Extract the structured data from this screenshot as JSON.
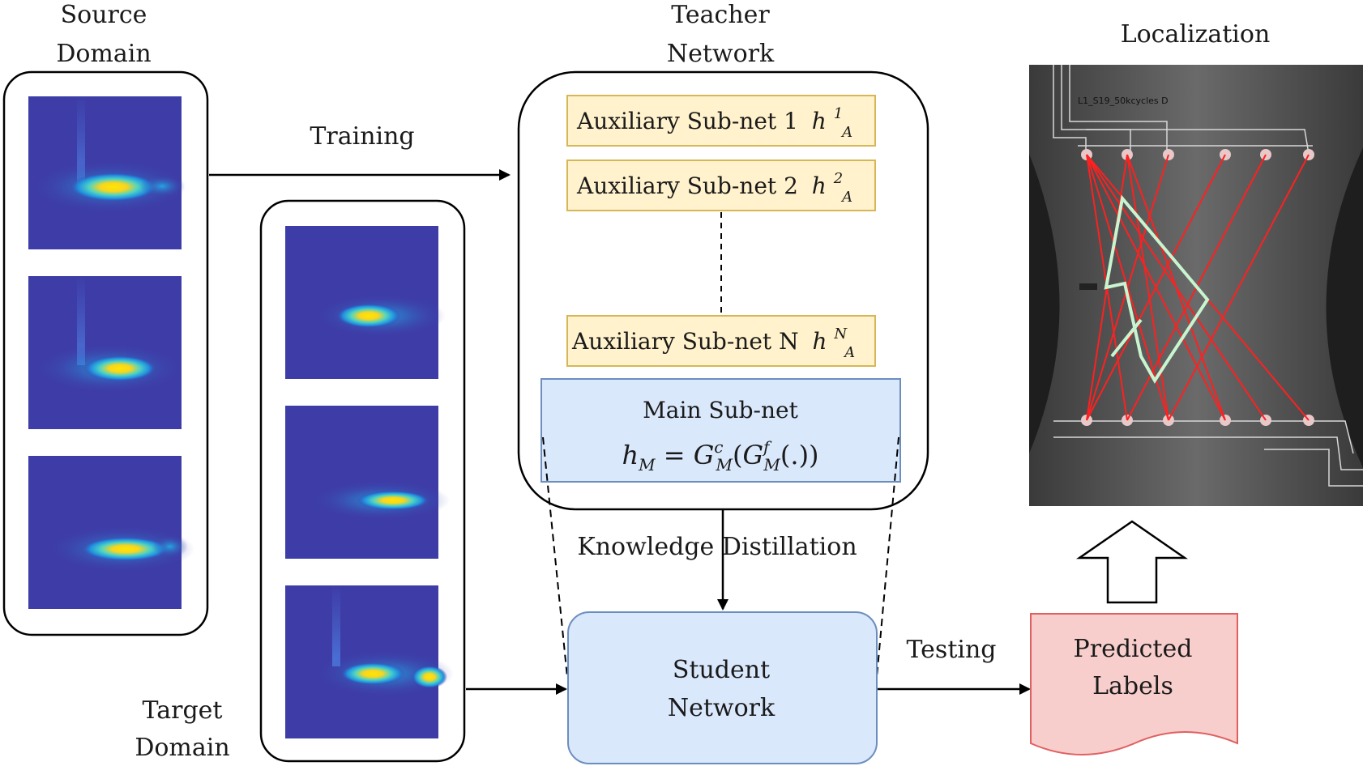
{
  "source_domain": {
    "label": "Source\nDomain",
    "line1": "Source",
    "line2": "Domain"
  },
  "target_domain": {
    "line1": "Target",
    "line2": "Domain"
  },
  "teacher": {
    "line1": "Teacher",
    "line2": "Network",
    "aux1": {
      "text": "Auxiliary Sub-net 1",
      "math_base": "h",
      "sup": "1",
      "sub": "A"
    },
    "aux2": {
      "text": "Auxiliary Sub-net 2",
      "math_base": "h",
      "sup": "2",
      "sub": "A"
    },
    "auxN": {
      "text": "Auxiliary Sub-net N",
      "math_base": "h",
      "sup": "N",
      "sub": "A"
    },
    "main": {
      "title": "Main Sub-net",
      "equation": "h_M = G^c_M(G^f_M(.))"
    }
  },
  "edges": {
    "training": "Training",
    "distillation": "Knowledge Distillation",
    "testing": "Testing"
  },
  "student": {
    "line1": "Student",
    "line2": "Network"
  },
  "predicted": {
    "line1": "Predicted",
    "line2": "Labels"
  },
  "localization": {
    "title": "Localization",
    "specimen_label": "L1_S19_50kcycles D"
  },
  "colors": {
    "aux_fill": "#FFF2CC",
    "aux_stroke": "#D6B656",
    "main_fill": "#DAE8FC",
    "main_stroke": "#6C8EBF",
    "student_fill": "#DAE8FC",
    "student_stroke": "#6C8EBF",
    "predicted_fill": "#F8CECC",
    "predicted_stroke": "#E06060",
    "heatmap_bg": "#3E3DA8",
    "path_red": "#FF2020",
    "zone_green": "#C8F5D0"
  }
}
